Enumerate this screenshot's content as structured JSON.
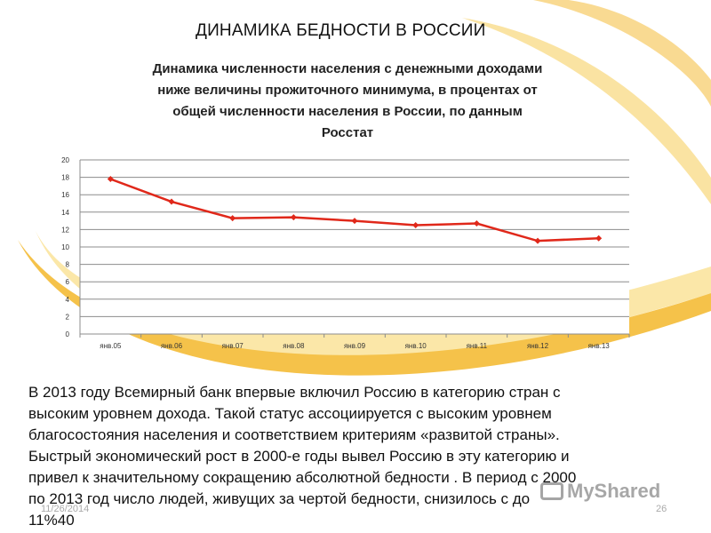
{
  "slide": {
    "title": "ДИНАМИКА БЕДНОСТИ В РОССИИ",
    "footer_date": "11/26/2014",
    "page_number": "26",
    "watermark": "MyShared",
    "body_lines": [
      "В 2013 году Всемирный банк впервые включил Россию в категорию стран с",
      "высоким уровнем дохода. Такой статус ассоциируется с высоким уровнем",
      "благосостояния населения и соответствием критериям «развитой страны».",
      "Быстрый экономический рост в 2000-е годы вывел Россию в эту категорию и",
      "привел к значительному сокращению абсолютной бедности . В период с 2000",
      "по 2013 год число людей, живущих за чертой бедности, снизилось с      до",
      "11%40"
    ],
    "accent_colors": {
      "swoosh_gold": "#f5c24a",
      "swoosh_light": "#fbe7a8",
      "line": "#e0281a"
    }
  },
  "chart_data": {
    "type": "line",
    "title_lines": [
      "Динамика численности населения с денежными доходами",
      "ниже величины прожиточного минимума, в процентах от",
      "общей численности населения  в России,  по данным",
      "Росстат"
    ],
    "categories": [
      "янв.05",
      "янв.06",
      "янв.07",
      "янв.08",
      "янв.09",
      "янв.10",
      "янв.11",
      "янв.12",
      "янв.13"
    ],
    "series": [
      {
        "values": [
          17.8,
          15.2,
          13.3,
          13.4,
          13.0,
          12.5,
          12.7,
          10.7,
          11.0
        ]
      }
    ],
    "y_ticks": [
      0,
      2,
      4,
      6,
      8,
      10,
      12,
      14,
      16,
      18,
      20
    ],
    "ylim": [
      0,
      20
    ],
    "xlabel": "",
    "ylabel": "",
    "grid": true,
    "legend": "none",
    "marker": "diamond"
  }
}
